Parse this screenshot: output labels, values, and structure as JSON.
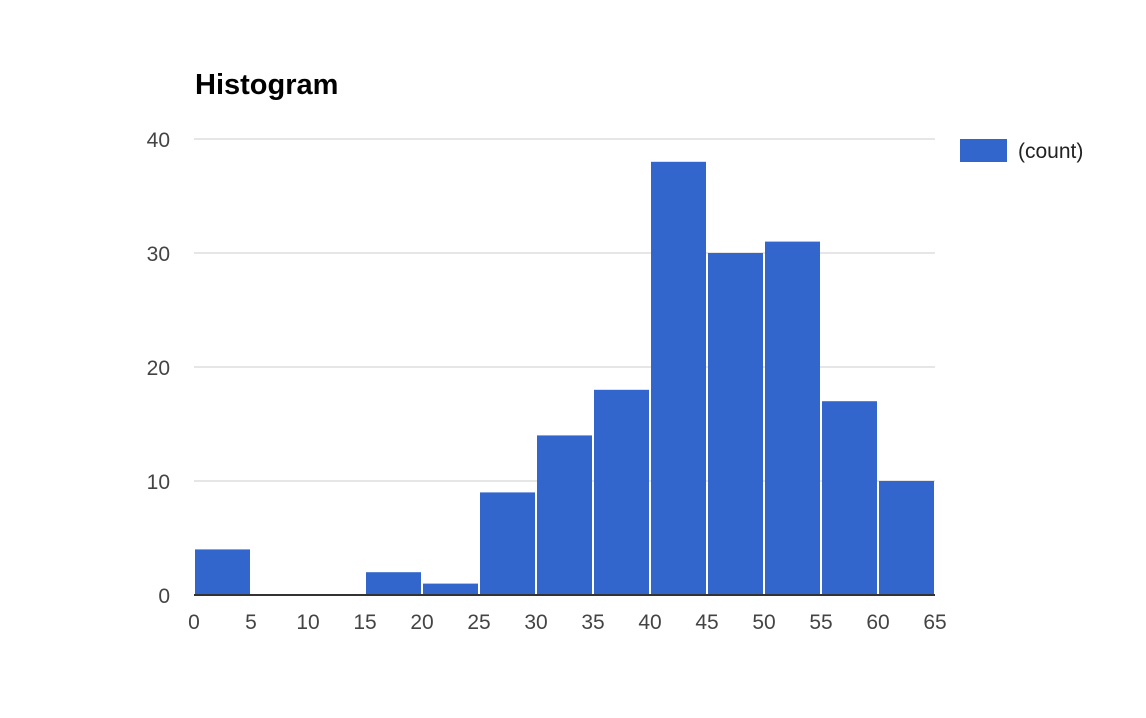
{
  "chart_data": {
    "type": "bar",
    "title": "Histogram",
    "xlabel": "",
    "ylabel": "",
    "bin_edges": [
      0,
      5,
      10,
      15,
      20,
      25,
      30,
      35,
      40,
      45,
      50,
      55,
      60,
      65
    ],
    "x_ticks": [
      "0",
      "5",
      "10",
      "15",
      "20",
      "25",
      "30",
      "35",
      "40",
      "45",
      "50",
      "55",
      "60",
      "65"
    ],
    "y_ticks": [
      "0",
      "10",
      "20",
      "30",
      "40"
    ],
    "series": [
      {
        "name": "(count)",
        "values": [
          4,
          0,
          0,
          2,
          1,
          9,
          14,
          18,
          38,
          30,
          31,
          17,
          10
        ]
      }
    ],
    "xlim": [
      0,
      65
    ],
    "ylim": [
      0,
      40
    ],
    "grid": true,
    "legend_position": "right",
    "colors": {
      "bar": "#3366cc",
      "grid": "#cccccc",
      "axis": "#333333"
    }
  }
}
